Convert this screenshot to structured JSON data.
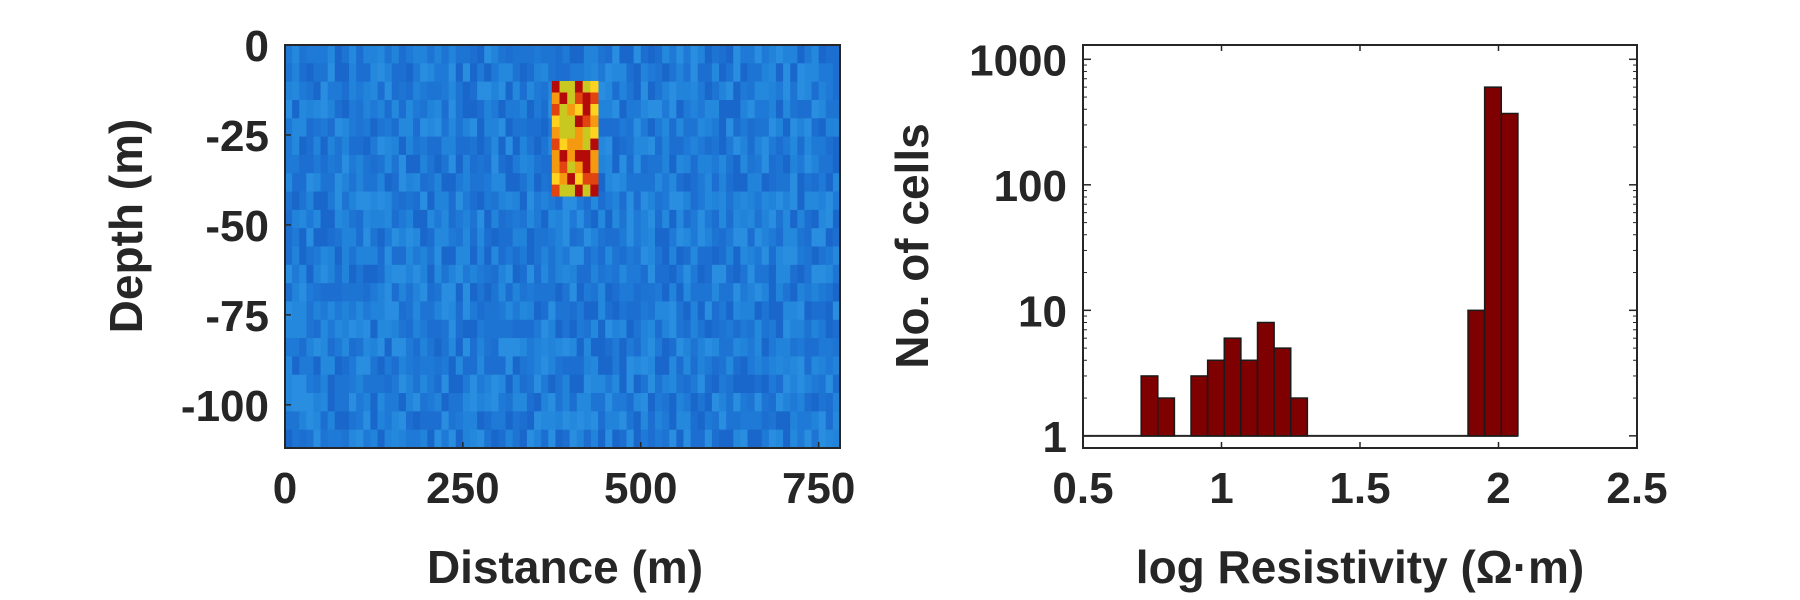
{
  "chart_data": [
    {
      "type": "heatmap",
      "xlabel": "Distance (m)",
      "ylabel": "Depth (m)",
      "xlim": [
        0,
        780
      ],
      "ylim": [
        -112,
        0
      ],
      "xticks": [
        0,
        250,
        500,
        750
      ],
      "yticks": [
        0,
        -25,
        -50,
        -75,
        -100
      ],
      "background_color": "#1f79d6",
      "anomaly": {
        "x_range": [
          375,
          440
        ],
        "depth_range": [
          -10,
          -42
        ],
        "colors": [
          "#ffd21f",
          "#f59a10",
          "#e1440e",
          "#b50a0a",
          "#c9c820"
        ]
      },
      "grid": false
    },
    {
      "type": "bar",
      "xlabel": "log Resistivity (Ω·m)",
      "ylabel": "No. of cells",
      "xlim": [
        0.5,
        2.5
      ],
      "xticks": [
        "0.5",
        "1",
        "1.5",
        "2",
        "2.5"
      ],
      "yscale": "log",
      "ylim": [
        0.8,
        1300
      ],
      "yticks": [
        "1",
        "10",
        "100",
        "1000"
      ],
      "bin_width": 0.06,
      "bar_color": "#7f0000",
      "bar_edge": "#1a1a1a",
      "x": [
        0.74,
        0.8,
        0.92,
        0.98,
        1.04,
        1.1,
        1.16,
        1.22,
        1.28,
        1.92,
        1.98,
        2.04
      ],
      "values": [
        3,
        2,
        3,
        4,
        6,
        4,
        8,
        5,
        2,
        10,
        600,
        370
      ],
      "baseline_line": 1,
      "grid": false
    }
  ]
}
